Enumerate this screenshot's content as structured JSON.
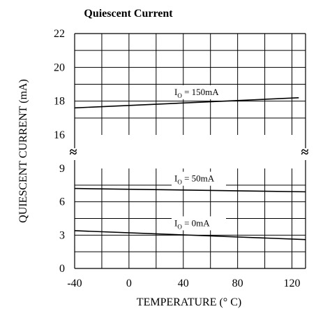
{
  "chart_data": {
    "type": "line",
    "title": "Quiescent Current",
    "xlabel": "TEMPERATURE (° C)",
    "ylabel": "QUIESCENT CURRENT (mA)",
    "axis_break_marker": "≈",
    "x_ticks": [
      "-40",
      "0",
      "40",
      "80",
      "120"
    ],
    "xlim": [
      -40,
      130
    ],
    "y_ticks_upper": [
      "22",
      "20",
      "18",
      "16"
    ],
    "y_ticks_lower": [
      "9",
      "6",
      "3",
      "0"
    ],
    "ylim_upper": [
      16,
      22
    ],
    "ylim_lower": [
      0,
      9
    ],
    "grid": true,
    "series": [
      {
        "name": "150mA",
        "label_prefix": "I",
        "label_subscript": "O",
        "label_suffix": " = 150mA",
        "x": [
          -40,
          125
        ],
        "y": [
          17.6,
          18.2
        ]
      },
      {
        "name": "50mA",
        "label_prefix": "I",
        "label_subscript": "O",
        "label_suffix": " = 50mA",
        "x": [
          -40,
          130
        ],
        "y": [
          7.2,
          6.9
        ]
      },
      {
        "name": "0mA",
        "label_prefix": "I",
        "label_subscript": "O",
        "label_suffix": " = 0mA",
        "x": [
          -40,
          130
        ],
        "y": [
          3.4,
          2.6
        ]
      }
    ]
  }
}
